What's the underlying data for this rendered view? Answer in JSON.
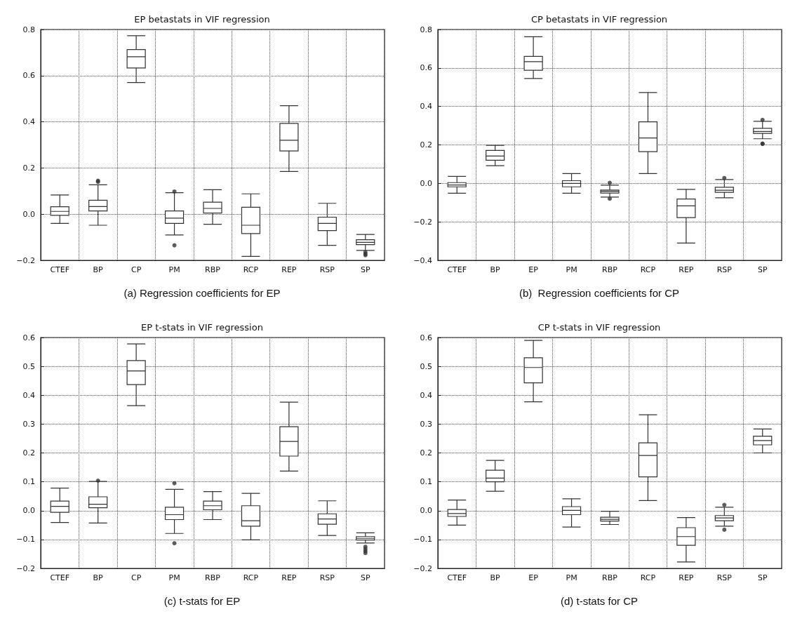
{
  "chart_data": [
    {
      "type": "box",
      "title": "EP betastats in VIF regression",
      "annotations": [
        "(a) Regression coefficients for EP"
      ],
      "categories": [
        "CTEF",
        "BP",
        "CP",
        "PM",
        "RBP",
        "RCP",
        "REP",
        "RSP",
        "SP"
      ],
      "ylim": [
        -0.2,
        0.8
      ],
      "yticks": [
        {
          "value": -0.2,
          "label": "−0.2"
        },
        {
          "value": 0,
          "label": "0.0"
        },
        {
          "value": 0.2,
          "label": "0.2"
        },
        {
          "value": 0.4,
          "label": "0.4"
        },
        {
          "value": 0.6,
          "label": "0.6"
        },
        {
          "value": 0.8,
          "label": "0.8"
        }
      ],
      "grid": true,
      "boxes": [
        {
          "low": -0.04,
          "q1": -0.005,
          "median": 0.012,
          "q3": 0.032,
          "high": 0.083
        },
        {
          "low": -0.048,
          "q1": 0.014,
          "median": 0.033,
          "q3": 0.06,
          "high": 0.127,
          "outliers": [
            0.14,
            0.145
          ]
        },
        {
          "low": 0.57,
          "q1": 0.633,
          "median": 0.682,
          "q3": 0.713,
          "high": 0.773
        },
        {
          "low": -0.09,
          "q1": -0.04,
          "median": -0.017,
          "q3": 0.014,
          "high": 0.093,
          "outliers": [
            -0.135,
            0.098
          ]
        },
        {
          "low": -0.044,
          "q1": 0.005,
          "median": 0.025,
          "q3": 0.052,
          "high": 0.106
        },
        {
          "low": -0.183,
          "q1": -0.084,
          "median": -0.048,
          "q3": 0.03,
          "high": 0.088
        },
        {
          "low": 0.185,
          "q1": 0.274,
          "median": 0.32,
          "q3": 0.393,
          "high": 0.47
        },
        {
          "low": -0.135,
          "q1": -0.071,
          "median": -0.04,
          "q3": -0.013,
          "high": 0.047
        },
        {
          "low": -0.157,
          "q1": -0.132,
          "median": -0.122,
          "q3": -0.111,
          "high": -0.088,
          "outliers": [
            -0.165,
            -0.172,
            -0.178
          ]
        }
      ]
    },
    {
      "type": "box",
      "title": "CP betastats in VIF regression",
      "annotations": [
        "(b)  Regression coefficients for CP"
      ],
      "categories": [
        "CTEF",
        "BP",
        "EP",
        "PM",
        "RBP",
        "RCP",
        "REP",
        "RSP",
        "SP"
      ],
      "ylim": [
        -0.4,
        0.8
      ],
      "yticks": [
        {
          "value": -0.4,
          "label": "−0.4"
        },
        {
          "value": -0.2,
          "label": "−0.2"
        },
        {
          "value": 0,
          "label": "0.0"
        },
        {
          "value": 0.2,
          "label": "0.2"
        },
        {
          "value": 0.4,
          "label": "0.4"
        },
        {
          "value": 0.6,
          "label": "0.6"
        },
        {
          "value": 0.8,
          "label": "0.8"
        }
      ],
      "grid": true,
      "boxes": [
        {
          "low": -0.051,
          "q1": -0.018,
          "median": -0.008,
          "q3": 0.004,
          "high": 0.036
        },
        {
          "low": 0.092,
          "q1": 0.12,
          "median": 0.142,
          "q3": 0.171,
          "high": 0.198
        },
        {
          "low": 0.545,
          "q1": 0.588,
          "median": 0.633,
          "q3": 0.66,
          "high": 0.762
        },
        {
          "low": -0.051,
          "q1": -0.018,
          "median": 0.0,
          "q3": 0.014,
          "high": 0.051
        },
        {
          "low": -0.071,
          "q1": -0.05,
          "median": -0.041,
          "q3": -0.035,
          "high": -0.009,
          "outliers": [
            -0.08,
            0.003
          ]
        },
        {
          "low": 0.051,
          "q1": 0.165,
          "median": 0.236,
          "q3": 0.32,
          "high": 0.472
        },
        {
          "low": -0.31,
          "q1": -0.178,
          "median": -0.117,
          "q3": -0.081,
          "high": -0.031
        },
        {
          "low": -0.075,
          "q1": -0.047,
          "median": -0.036,
          "q3": -0.02,
          "high": 0.02,
          "outliers": [
            0.028
          ]
        },
        {
          "low": 0.232,
          "q1": 0.26,
          "median": 0.27,
          "q3": 0.286,
          "high": 0.323,
          "outliers": [
            0.205,
            0.207,
            0.33
          ]
        }
      ]
    },
    {
      "type": "box",
      "title": "EP t-stats in VIF regression",
      "annotations": [
        "(c) t-stats for EP"
      ],
      "categories": [
        "CTEF",
        "BP",
        "CP",
        "PM",
        "RBP",
        "RCP",
        "REP",
        "RSP",
        "SP"
      ],
      "ylim": [
        -0.2,
        0.6
      ],
      "yticks": [
        {
          "value": -0.2,
          "label": "−0.2"
        },
        {
          "value": -0.1,
          "label": "−0.1"
        },
        {
          "value": 0,
          "label": "0.0"
        },
        {
          "value": 0.1,
          "label": "0.1"
        },
        {
          "value": 0.2,
          "label": "0.2"
        },
        {
          "value": 0.3,
          "label": "0.3"
        },
        {
          "value": 0.4,
          "label": "0.4"
        },
        {
          "value": 0.5,
          "label": "0.5"
        },
        {
          "value": 0.6,
          "label": "0.6"
        }
      ],
      "grid": true,
      "boxes": [
        {
          "low": -0.041,
          "q1": -0.006,
          "median": 0.015,
          "q3": 0.033,
          "high": 0.078
        },
        {
          "low": -0.043,
          "q1": 0.01,
          "median": 0.022,
          "q3": 0.048,
          "high": 0.101,
          "outliers": [
            0.104
          ]
        },
        {
          "low": 0.364,
          "q1": 0.437,
          "median": 0.484,
          "q3": 0.52,
          "high": 0.578
        },
        {
          "low": -0.079,
          "q1": -0.031,
          "median": -0.014,
          "q3": 0.012,
          "high": 0.074,
          "outliers": [
            -0.113,
            0.095
          ]
        },
        {
          "low": -0.031,
          "q1": 0.003,
          "median": 0.017,
          "q3": 0.033,
          "high": 0.066
        },
        {
          "low": -0.101,
          "q1": -0.054,
          "median": -0.035,
          "q3": 0.017,
          "high": 0.06
        },
        {
          "low": 0.137,
          "q1": 0.189,
          "median": 0.24,
          "q3": 0.291,
          "high": 0.376
        },
        {
          "low": -0.086,
          "q1": -0.047,
          "median": -0.029,
          "q3": -0.011,
          "high": 0.034
        },
        {
          "low": -0.112,
          "q1": -0.102,
          "median": -0.096,
          "q3": -0.09,
          "high": -0.077,
          "outliers": [
            -0.125,
            -0.133,
            -0.14,
            -0.147
          ]
        }
      ]
    },
    {
      "type": "box",
      "title": "CP t-stats in VIF regression",
      "annotations": [
        "(d) t-stats for CP"
      ],
      "categories": [
        "CTEF",
        "BP",
        "EP",
        "PM",
        "RBP",
        "RCP",
        "REP",
        "RSP",
        "SP"
      ],
      "ylim": [
        -0.2,
        0.6
      ],
      "yticks": [
        {
          "value": -0.2,
          "label": "−0.2"
        },
        {
          "value": -0.1,
          "label": "−0.1"
        },
        {
          "value": 0,
          "label": "0.0"
        },
        {
          "value": 0.1,
          "label": "0.1"
        },
        {
          "value": 0.2,
          "label": "0.2"
        },
        {
          "value": 0.3,
          "label": "0.3"
        },
        {
          "value": 0.4,
          "label": "0.4"
        },
        {
          "value": 0.5,
          "label": "0.5"
        },
        {
          "value": 0.6,
          "label": "0.6"
        }
      ],
      "grid": true,
      "boxes": [
        {
          "low": -0.05,
          "q1": -0.02,
          "median": -0.01,
          "q3": 0.004,
          "high": 0.037
        },
        {
          "low": 0.067,
          "q1": 0.1,
          "median": 0.113,
          "q3": 0.14,
          "high": 0.174
        },
        {
          "low": 0.377,
          "q1": 0.443,
          "median": 0.496,
          "q3": 0.53,
          "high": 0.59
        },
        {
          "low": -0.057,
          "q1": -0.014,
          "median": 0.001,
          "q3": 0.014,
          "high": 0.041
        },
        {
          "low": -0.048,
          "q1": -0.036,
          "median": -0.03,
          "q3": -0.023,
          "high": -0.002
        },
        {
          "low": 0.035,
          "q1": 0.117,
          "median": 0.191,
          "q3": 0.235,
          "high": 0.332
        },
        {
          "low": -0.178,
          "q1": -0.12,
          "median": -0.09,
          "q3": -0.059,
          "high": -0.024
        },
        {
          "low": -0.054,
          "q1": -0.035,
          "median": -0.025,
          "q3": -0.017,
          "high": 0.012,
          "outliers": [
            -0.066,
            0.02
          ]
        },
        {
          "low": 0.2,
          "q1": 0.228,
          "median": 0.243,
          "q3": 0.258,
          "high": 0.283
        }
      ]
    }
  ]
}
